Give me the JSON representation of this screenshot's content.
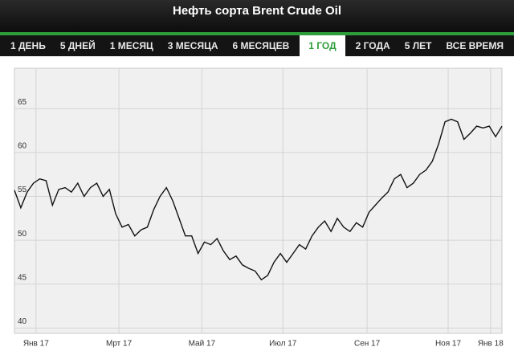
{
  "tabs": [
    "1 ДЕНЬ",
    "5 ДНЕЙ",
    "1 МЕСЯЦ",
    "3 МЕСЯЦА",
    "6 МЕСЯЦЕВ",
    "1 ГОД",
    "2 ГОДА",
    "5 ЛЕТ",
    "ВСЕ ВРЕМЯ"
  ],
  "active_tab": 5,
  "chart_data": {
    "type": "line",
    "title": "Нефть сорта Brent Crude Oil",
    "color": "#111111",
    "grid": true,
    "values": [
      55.7,
      53.7,
      55.5,
      56.5,
      57,
      56.8,
      54,
      55.8,
      56,
      55.5,
      56.5,
      55,
      56,
      56.5,
      55,
      55.8,
      53,
      51.5,
      51.8,
      50.5,
      51.2,
      51.5,
      53.5,
      55,
      56,
      54.5,
      52.5,
      50.5,
      50.5,
      48.5,
      49.8,
      49.5,
      50.2,
      48.8,
      47.8,
      48.2,
      47.2,
      46.8,
      46.5,
      45.5,
      46,
      47.5,
      48.5,
      47.5,
      48.5,
      49.5,
      49,
      50.5,
      51.5,
      52.2,
      51,
      52.5,
      51.5,
      51,
      52,
      51.5,
      53.2,
      54,
      54.8,
      55.5,
      57,
      57.5,
      56,
      56.5,
      57.5,
      58,
      59,
      61,
      63.5,
      63.8,
      63.5,
      61.5,
      62.2,
      63,
      62.8,
      63,
      61.8,
      63
    ],
    "xlim": [
      0,
      77
    ],
    "xticks": [
      {
        "value": 3.4,
        "label": "Янв 17"
      },
      {
        "value": 16.5,
        "label": "Мрт 17"
      },
      {
        "value": 29.6,
        "label": "Май 17"
      },
      {
        "value": 42.4,
        "label": "Июл 17"
      },
      {
        "value": 55.7,
        "label": "Сен 17"
      },
      {
        "value": 68.5,
        "label": "Ноя 17"
      },
      {
        "value": 75.2,
        "label": "Янв 18"
      }
    ],
    "ylim": [
      39.4,
      69.6
    ],
    "yticks": [
      40,
      45,
      50,
      55,
      60,
      65
    ]
  }
}
